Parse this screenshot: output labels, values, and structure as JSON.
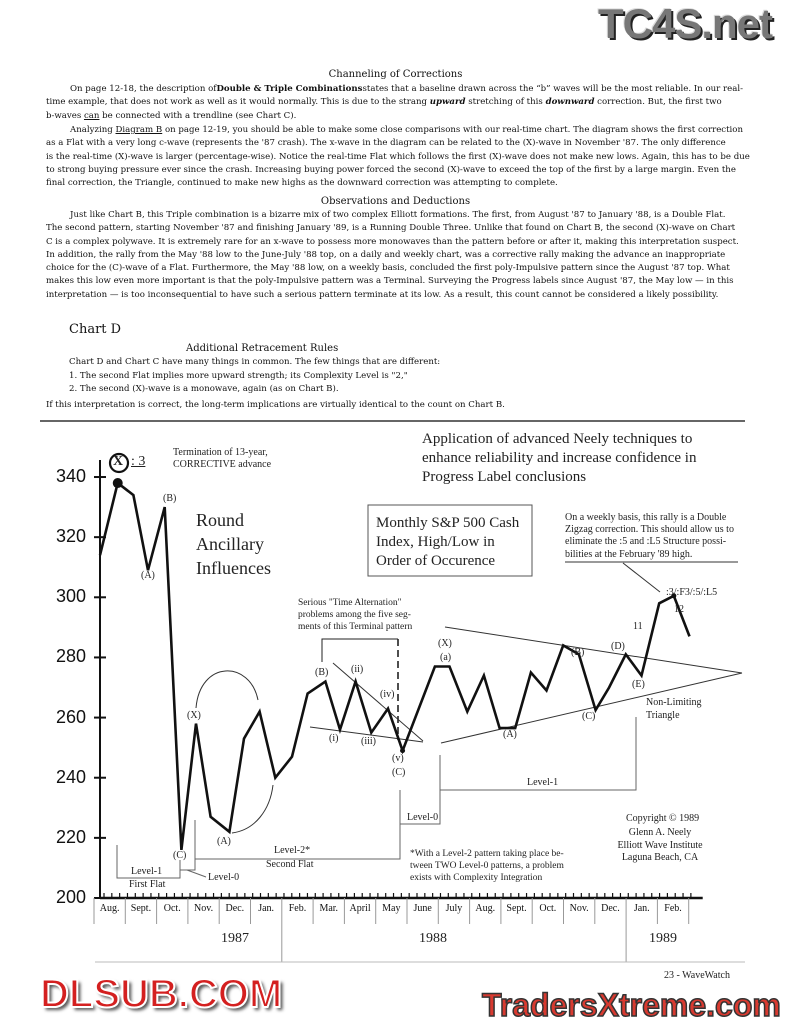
{
  "watermarks": {
    "top": "TC4S.net",
    "center": "DLSUB.COM",
    "bottom": "TradersXtreme.com"
  },
  "section1": {
    "title": "Channeling of Corrections",
    "p1": {
      "l1a": "On page 12-18, the description of",
      "l1b": "Double & Triple Combinations",
      "l1c": "states that a baseline drawn across the “b” waves will be the most reliable.  In our real-",
      "l2a": "time example, that does not work as well as it would normally.  This is due to the strang ",
      "l2b": "upward",
      "l2c": " stretching of this ",
      "l2d": "downward",
      "l2e": " correction.  But, the first two",
      "l3a": "b-waves ",
      "l3b": "can",
      "l3c": " be connected with a trendline (see Chart C)."
    },
    "p2": {
      "l1a": "Analyzing ",
      "l1b": "Diagram B",
      "l1c": " on page 12-19, you should be able to make some close comparisons with our real-time chart.  The diagram shows the first correction",
      "lines": [
        "as a Flat with a very long c-wave (represents the '87 crash).  The x-wave in the diagram can be related to the (X)-wave in November '87.  The only difference",
        "is the real-time (X)-wave is larger (percentage-wise).  Notice the real-time Flat which follows the first (X)-wave does not make new lows.  Again, this has to be due",
        "to strong buying pressure ever since the crash.  Increasing buying power forced the second (X)-wave to exceed the top of the first by a large margin.  Even the",
        "final correction, the Triangle, continued to make new highs as the downward correction was attempting to complete."
      ]
    }
  },
  "section2": {
    "title": "Observations and Deductions",
    "lines": [
      "Just like Chart B, this Triple combination is a bizarre mix of two complex Elliott formations.  The first, from August '87 to January '88, is a Double Flat.",
      "The second pattern, starting November '87 and finishing January '89, is a Running Double Three.  Unlike that found on Chart B, the second (X)-wave on Chart",
      "C is a complex polywave.  It is extremely rare for an x-wave to possess more monowaves than the pattern before or after it, making this interpretation suspect.",
      "In addition, the rally from the May '88 low to the June-July '88 top, on a daily and weekly chart, was a corrective rally making the advance an inappropriate",
      "choice for the (C)-wave of a Flat.  Furthermore, the May '88 low, on a weekly basis, concluded the first poly-Impulsive pattern since the August '87 top.  What",
      "makes this low even more important is that the poly-Impulsive pattern was a Terminal.  Surveying the Progress labels since August '87, the May low — in this",
      "interpretation — is too inconsequential to have such a serious pattern terminate at its low.  As a result, this count cannot be considered a likely possibility."
    ]
  },
  "chartD": {
    "heading": "Chart D",
    "subtitle": "Additional Retracement Rules",
    "lines": [
      "Chart D and Chart C have many things in common.  The few things that are different:",
      "1.  The second Flat implies more upward strength; its Complexity Level is \"2,\"",
      "2.  The second (X)-wave is a monowave, again (as on Chart B)."
    ],
    "closing": "If this interpretation is correct, the long-term implications are virtually identical to the count on Chart B."
  },
  "chart_data": {
    "type": "line",
    "title": "Application of advanced Neely techniques to enhance reliability and increase confidence in Progress Label conclusions",
    "title_lines": [
      "Application of advanced Neely techniques to",
      "enhance reliability and increase confidence in",
      "Progress Label conclusions"
    ],
    "series_box": [
      "Monthly S&P 500 Cash",
      "Index, High/Low in",
      "Order of Occurence"
    ],
    "ylim": [
      200,
      340
    ],
    "yticks": [
      340,
      320,
      300,
      280,
      260,
      240,
      220,
      200
    ],
    "xlim": [
      "1987-08-01",
      "1989-03-01"
    ],
    "months": [
      "Aug.",
      "Sept.",
      "Oct.",
      "Nov.",
      "Dec.",
      "Jan.",
      "Feb.",
      "Mar.",
      "April",
      "May",
      "June",
      "July",
      "Aug.",
      "Sept.",
      "Oct.",
      "Nov.",
      "Dec.",
      "Jan.",
      "Feb."
    ],
    "years": [
      "1987",
      "1988",
      "1989"
    ],
    "grid": false,
    "points": [
      [
        "1987-08-01",
        314
      ],
      [
        "1987-08-18",
        338
      ],
      [
        "1987-09-03",
        334
      ],
      [
        "1987-09-17",
        309
      ],
      [
        "1987-10-03",
        330
      ],
      [
        "1987-10-19",
        216
      ],
      [
        "1987-11-03",
        258
      ],
      [
        "1987-11-17",
        227
      ],
      [
        "1987-12-05",
        222
      ],
      [
        "1987-12-19",
        253
      ],
      [
        "1988-01-04",
        262
      ],
      [
        "1988-01-19",
        240
      ],
      [
        "1988-02-05",
        247
      ],
      [
        "1988-02-20",
        268
      ],
      [
        "1988-03-07",
        272
      ],
      [
        "1988-03-21",
        256
      ],
      [
        "1988-04-06",
        272
      ],
      [
        "1988-04-21",
        255
      ],
      [
        "1988-05-07",
        263
      ],
      [
        "1988-05-21",
        249
      ],
      [
        "1988-06-22",
        277
      ],
      [
        "1988-07-06",
        277
      ],
      [
        "1988-07-23",
        262
      ],
      [
        "1988-08-09",
        274
      ],
      [
        "1988-08-24",
        256.5
      ],
      [
        "1988-09-09",
        256.5
      ],
      [
        "1988-09-24",
        275
      ],
      [
        "1988-10-09",
        269
      ],
      [
        "1988-10-25",
        284
      ],
      [
        "1988-11-10",
        281
      ],
      [
        "1988-11-26",
        262.5
      ],
      [
        "1988-12-09",
        270
      ],
      [
        "1988-12-25",
        281
      ],
      [
        "1989-01-10",
        274
      ],
      [
        "1989-01-27",
        298
      ],
      [
        "1989-02-11",
        300.5
      ],
      [
        "1989-02-26",
        287
      ]
    ],
    "wave_labels": {
      "X3_circle": "X",
      "X3_suffix": ": 3",
      "B1": "(B)",
      "A1": "(A)",
      "C1": "(C)",
      "X2": "(X)",
      "A2": "(A)",
      "B2": "(B)",
      "i": "(i)",
      "ii": "(ii)",
      "iii": "(iii)",
      "iv": "(iv)",
      "v": "(v)",
      "C2": "(C)",
      "X3": "(X)",
      "a": "(a)",
      "A3": "(A)",
      "B3": "(B)",
      "C3": "(C)",
      "D": "(D)",
      "E": "(E)",
      "w11": "11",
      "w12": "12",
      "top_struct": ":3/:F3/:5/:L5"
    },
    "annotations": {
      "termination": [
        "Termination of 13-year,",
        "CORRECTIVE advance"
      ],
      "round": [
        "Round",
        "Ancillary",
        "Influences"
      ],
      "serious": [
        "Serious  \"Time  Alternation\"",
        "problems among the five seg-",
        "ments of this Terminal pattern"
      ],
      "weekly": [
        "On a weekly basis, this rally is a Double",
        "Zigzag correction. This should allow us to",
        "eliminate the :5 and :L5 Structure possi-",
        "bilities at the February '89 high."
      ],
      "triangle": [
        "Non-Limiting",
        "Triangle"
      ],
      "level1_first": "Level-1",
      "first_flat": "First Flat",
      "level0_a": "Level-0",
      "level2": "Level-2*",
      "second_flat": "Second Flat",
      "level0_b": "Level-0",
      "level1_b": "Level-1",
      "footnote": [
        "*With a Level-2 pattern taking place be-",
        "tween TWO Level-0 patterns, a problem",
        "exists with Complexity Integration"
      ],
      "copyright": "Copyright  © 1989",
      "author": [
        "Glenn A. Neely",
        "Elliott Wave Institute",
        "Laguna Beach, CA"
      ]
    }
  },
  "footer": {
    "page": "23 - WaveWatch"
  }
}
